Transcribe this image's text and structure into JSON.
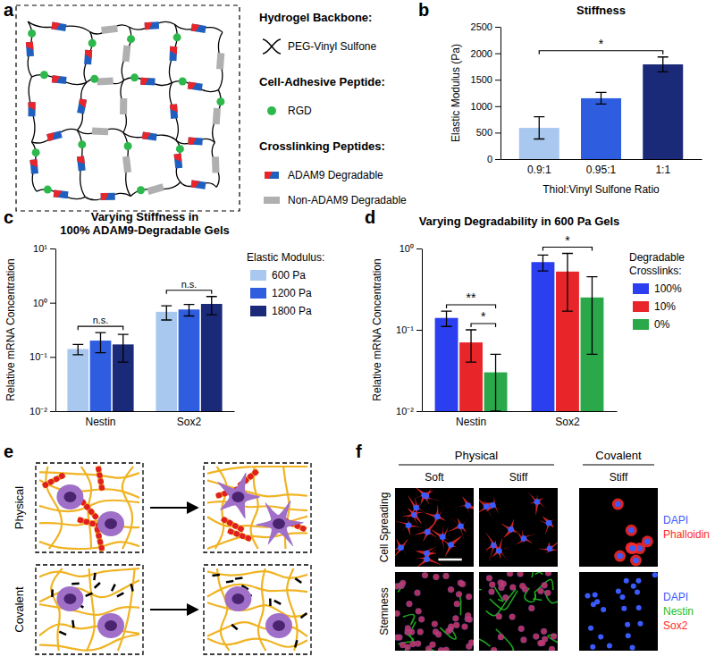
{
  "chart_data": [
    {
      "type": "bar",
      "title": "Stiffness",
      "x_label": "Thiol:Vinyl Sulfone Ratio",
      "y_label": "Elastic Modulus (Pa)",
      "categories": [
        "0.9:1",
        "0.95:1",
        "1:1"
      ],
      "values": [
        590,
        1150,
        1790
      ],
      "errors": [
        210,
        110,
        140
      ],
      "colors": [
        "#a9c8f0",
        "#2f5de0",
        "#1b2a78"
      ],
      "ylim": [
        0,
        2500
      ],
      "yticks": [
        0,
        500,
        1000,
        1500,
        2000,
        2500
      ],
      "annotations": [
        {
          "text": "*",
          "between": [
            "0.9:1",
            "1:1"
          ]
        }
      ]
    },
    {
      "type": "bar",
      "title": "Varying Stiffness in\n100% ADAM9-Degradable Gels",
      "y_label": "Relative mRNA Concentration",
      "log": "y",
      "categories": [
        "Nestin",
        "Sox2"
      ],
      "legend": "right",
      "legend_title": "Elastic Modulus:",
      "series": [
        {
          "name": "600 Pa",
          "color": "#a9c8f0",
          "values": [
            0.14,
            0.68
          ],
          "errors": [
            0.03,
            0.2
          ]
        },
        {
          "name": "1200 Pa",
          "color": "#2f5de0",
          "values": [
            0.2,
            0.75
          ],
          "errors": [
            0.08,
            0.18
          ]
        },
        {
          "name": "1800 Pa",
          "color": "#1b2a78",
          "values": [
            0.17,
            0.95
          ],
          "errors": [
            0.09,
            0.35
          ]
        }
      ],
      "ylim": [
        0.01,
        10
      ],
      "yticks": [
        {
          "value": 0.01,
          "label": "10⁻²"
        },
        {
          "value": 0.1,
          "label": "10⁻¹"
        },
        {
          "value": 1,
          "label": "10⁰"
        },
        {
          "value": 10,
          "label": "10¹"
        }
      ],
      "annotations": [
        {
          "text": "n.s.",
          "category": "Nestin",
          "between": [
            "600 Pa",
            "1800 Pa"
          ]
        },
        {
          "text": "n.s.",
          "category": "Sox2",
          "between": [
            "600 Pa",
            "1800 Pa"
          ]
        }
      ]
    },
    {
      "type": "bar",
      "title": "Varying Degradability in 600 Pa Gels",
      "y_label": "Relative mRNA Concentration",
      "log": "y",
      "categories": [
        "Nestin",
        "Sox2"
      ],
      "legend": "right",
      "legend_title": "Degradable\nCrosslinks:",
      "series": [
        {
          "name": "100%",
          "color": "#2b3ff0",
          "values": [
            0.14,
            0.68
          ],
          "errors": [
            0.03,
            0.15
          ]
        },
        {
          "name": "10%",
          "color": "#e8262a",
          "values": [
            0.07,
            0.52
          ],
          "errors": [
            0.03,
            0.35
          ]
        },
        {
          "name": "0%",
          "color": "#2aa84a",
          "values": [
            0.03,
            0.25
          ],
          "errors": [
            0.02,
            0.2
          ]
        }
      ],
      "ylim": [
        0.01,
        1
      ],
      "yticks": [
        {
          "value": 0.01,
          "label": "10⁻²"
        },
        {
          "value": 0.1,
          "label": "10⁻¹"
        },
        {
          "value": 1,
          "label": "10⁰"
        }
      ],
      "annotations": [
        {
          "text": "**",
          "category": "Nestin",
          "between": [
            "100%",
            "0%"
          ]
        },
        {
          "text": "*",
          "category": "Nestin",
          "between": [
            "10%",
            "0%"
          ]
        },
        {
          "text": "*",
          "category": "Sox2",
          "between": [
            "100%",
            "0%"
          ]
        }
      ]
    }
  ],
  "panels": {
    "a": {
      "label": "a",
      "legend": [
        {
          "heading": "Hydrogel Backbone:",
          "items": [
            {
              "name": "PEG-Vinyl Sulfone"
            }
          ]
        },
        {
          "heading": "Cell-Adhesive Peptide:",
          "items": [
            {
              "name": "RGD"
            }
          ]
        },
        {
          "heading": "Crosslinking Peptides:",
          "items": [
            {
              "name": "ADAM9 Degradable"
            },
            {
              "name": "Non-ADAM9 Degradable"
            }
          ]
        }
      ]
    },
    "b": {
      "label": "b"
    },
    "c": {
      "label": "c"
    },
    "d": {
      "label": "d"
    },
    "e": {
      "label": "e",
      "rows": [
        "Physical",
        "Covalent"
      ]
    },
    "f": {
      "label": "f",
      "groups": [
        {
          "name": "Physical",
          "columns": [
            "Soft",
            "Stiff"
          ]
        },
        {
          "name": "Covalent",
          "columns": [
            "Stiff"
          ]
        }
      ],
      "rows": [
        {
          "name": "Cell Spreading",
          "stains": [
            {
              "name": "DAPI",
              "color": "#3a5bff"
            },
            {
              "name": "Phalloidin",
              "color": "#ff2a2a"
            }
          ]
        },
        {
          "name": "Stemness",
          "stains": [
            {
              "name": "DAPI",
              "color": "#3a5bff"
            },
            {
              "name": "Nestin",
              "color": "#22c022"
            },
            {
              "name": "Sox2",
              "color": "#ff2a2a"
            }
          ]
        }
      ]
    }
  }
}
